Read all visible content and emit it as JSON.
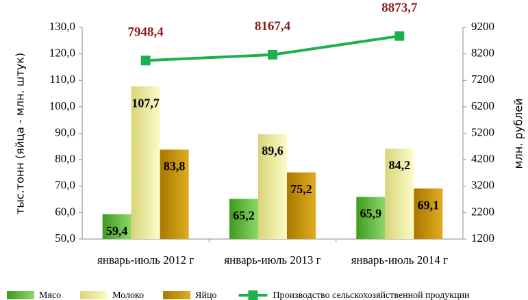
{
  "chart_data": {
    "type": "bar-line",
    "categories": [
      "январь-июль 2012 г",
      "январь-июль 2013 г",
      "январь-июль 2014 г"
    ],
    "series": [
      {
        "name": "Мясо",
        "color": "#5cb531",
        "values": [
          59.4,
          65.2,
          65.9
        ],
        "value_labels": [
          "59,4",
          "65,2",
          "65,9"
        ]
      },
      {
        "name": "Молоко",
        "color": "#ecea9a",
        "values": [
          107.7,
          89.6,
          84.2
        ],
        "value_labels": [
          "107,7",
          "89,6",
          "84,2"
        ]
      },
      {
        "name": "Яйцо",
        "color": "#c8960a",
        "values": [
          83.8,
          75.2,
          69.1
        ],
        "value_labels": [
          "83,8",
          "75,2",
          "69,1"
        ]
      },
      {
        "name": "Производство сельскохозяйственной продукции",
        "color": "#1db04f",
        "type": "line",
        "axis": "y2",
        "values": [
          7948.4,
          8167.4,
          8873.7
        ],
        "value_labels": [
          "7948,4",
          "8167,4",
          "8873,7"
        ]
      }
    ],
    "ylabel": "тыс.тонн  (яйца - млн. штук)",
    "y2label": "млн. рублей",
    "ylim": [
      50,
      130
    ],
    "yticks": [
      {
        "value": 50,
        "label": "50,0"
      },
      {
        "value": 60,
        "label": "60,0"
      },
      {
        "value": 70,
        "label": "70,0"
      },
      {
        "value": 80,
        "label": "80,0"
      },
      {
        "value": 90,
        "label": "90,0"
      },
      {
        "value": 100,
        "label": "100,0"
      },
      {
        "value": 110,
        "label": "110,0"
      },
      {
        "value": 120,
        "label": "120,0"
      },
      {
        "value": 130,
        "label": "130,0"
      }
    ],
    "y2lim": [
      1200,
      9200
    ],
    "y2ticks": [
      1200,
      2200,
      3200,
      4200,
      5200,
      6200,
      7200,
      8200,
      9200
    ],
    "legend": "bottom"
  }
}
